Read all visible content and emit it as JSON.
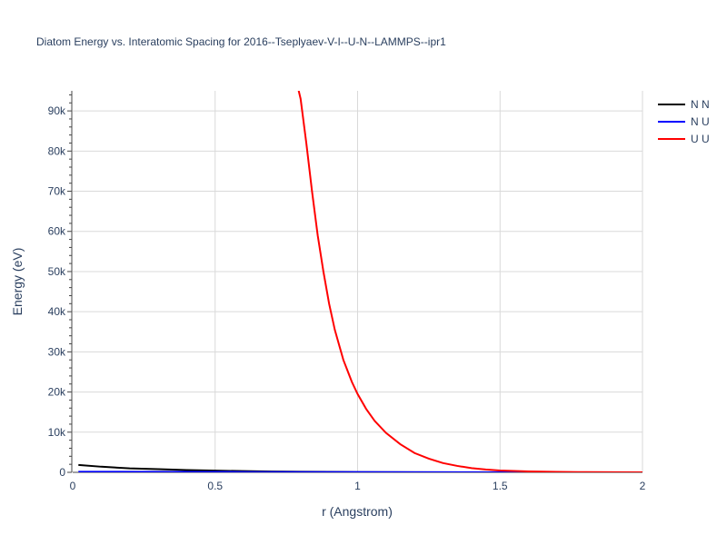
{
  "chart_data": {
    "type": "line",
    "title": "Diatom Energy vs. Interatomic Spacing for 2016--Tseplyaev-V-I--U-N--LAMMPS--ipr1",
    "xlabel": "r (Angstrom)",
    "ylabel": "Energy (eV)",
    "xlim": [
      0,
      2
    ],
    "ylim": [
      0,
      95000
    ],
    "x_ticks": [
      0,
      0.5,
      1,
      1.5,
      2
    ],
    "x_tick_labels": [
      "0",
      "0.5",
      "1",
      "1.5",
      "2"
    ],
    "y_ticks": [
      0,
      10000,
      20000,
      30000,
      40000,
      50000,
      60000,
      70000,
      80000,
      90000
    ],
    "y_tick_labels": [
      "0",
      "10k",
      "20k",
      "30k",
      "40k",
      "50k",
      "60k",
      "70k",
      "80k",
      "90k"
    ],
    "grid": true,
    "legend_position": "top-right",
    "series": [
      {
        "name": "N N",
        "color": "#000000",
        "x": [
          0.02,
          0.1,
          0.2,
          0.3,
          0.4,
          0.5,
          0.6,
          0.7,
          0.8,
          0.9,
          1.0,
          1.2,
          1.4,
          1.6,
          1.8,
          2.0
        ],
        "y": [
          1850,
          1400,
          1000,
          780,
          580,
          420,
          300,
          210,
          150,
          100,
          65,
          30,
          10,
          5,
          2,
          0
        ]
      },
      {
        "name": "N U",
        "color": "#0000ff",
        "x": [
          0.02,
          0.2,
          0.4,
          0.6,
          0.8,
          1.0,
          1.2,
          1.4,
          1.6,
          1.8,
          2.0
        ],
        "y": [
          150,
          140,
          120,
          95,
          70,
          50,
          30,
          15,
          8,
          3,
          0
        ]
      },
      {
        "name": "U U",
        "color": "#ff0000",
        "x": [
          0.79,
          0.8,
          0.82,
          0.84,
          0.86,
          0.88,
          0.9,
          0.92,
          0.95,
          0.98,
          1.0,
          1.03,
          1.06,
          1.1,
          1.15,
          1.2,
          1.25,
          1.3,
          1.35,
          1.4,
          1.45,
          1.5,
          1.6,
          1.7,
          1.8,
          1.9,
          2.0
        ],
        "y": [
          96000,
          93000,
          82000,
          70000,
          59000,
          50000,
          42000,
          35500,
          28000,
          22500,
          19500,
          15800,
          12800,
          9800,
          7000,
          4800,
          3400,
          2300,
          1600,
          1050,
          700,
          450,
          230,
          110,
          50,
          20,
          5
        ]
      }
    ]
  }
}
